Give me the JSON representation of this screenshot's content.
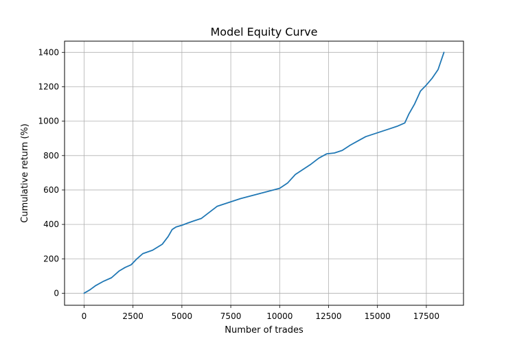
{
  "chart_data": {
    "type": "line",
    "title": "Model Equity Curve",
    "xlabel": "Number of trades",
    "ylabel": "Cumulative return (%)",
    "xlim": [
      -1000,
      19400
    ],
    "ylim": [
      -70,
      1465
    ],
    "x_ticks": [
      0,
      2500,
      5000,
      7500,
      10000,
      12500,
      15000,
      17500
    ],
    "y_ticks": [
      0,
      200,
      400,
      600,
      800,
      1000,
      1200,
      1400
    ],
    "grid": true,
    "line_color": "#1f77b4",
    "series": [
      {
        "x": [
          0,
          300,
          600,
          1000,
          1400,
          1800,
          2100,
          2400,
          2700,
          3000,
          3500,
          4000,
          4300,
          4500,
          4700,
          5000,
          5300,
          5600,
          6000,
          6400,
          6800,
          7200,
          7600,
          8000,
          8500,
          9000,
          9500,
          10000,
          10400,
          10800,
          11200,
          11600,
          12000,
          12400,
          12800,
          13200,
          13600,
          14000,
          14400,
          14800,
          15200,
          15600,
          16000,
          16400,
          16600,
          16900,
          17200,
          17500,
          17800,
          18100,
          18400
        ],
        "y": [
          0,
          20,
          45,
          70,
          90,
          130,
          150,
          165,
          200,
          230,
          250,
          285,
          330,
          370,
          385,
          395,
          408,
          420,
          435,
          470,
          505,
          520,
          535,
          550,
          565,
          580,
          595,
          610,
          640,
          690,
          720,
          750,
          785,
          810,
          815,
          830,
          860,
          885,
          910,
          925,
          940,
          955,
          970,
          990,
          1040,
          1100,
          1175,
          1210,
          1250,
          1300,
          1400
        ]
      }
    ]
  }
}
